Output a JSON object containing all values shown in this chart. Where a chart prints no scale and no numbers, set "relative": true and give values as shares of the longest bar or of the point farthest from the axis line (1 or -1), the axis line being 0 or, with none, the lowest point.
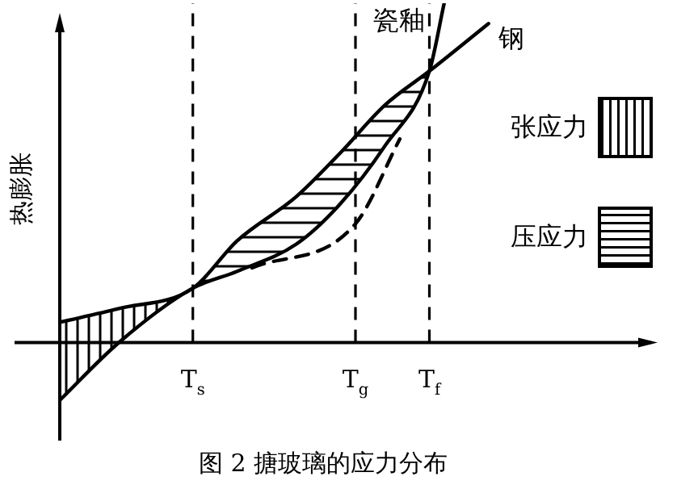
{
  "chart_data": {
    "type": "line",
    "relative": true,
    "title": "图 2 搪玻璃的应力分布",
    "ylabel": "热膨胀",
    "grid": "x",
    "marker": "none",
    "annotations": [
      "张应力",
      "压应力"
    ],
    "categories": [
      null,
      null,
      null,
      null,
      null,
      null,
      null,
      null,
      null,
      "T$_{s}$",
      null,
      null,
      null,
      null,
      null,
      null,
      null,
      null,
      null,
      null,
      "T$_{g}$",
      null,
      null,
      null,
      null,
      "T$_{f}$",
      null,
      null,
      null,
      null,
      null,
      null,
      null,
      null,
      null,
      null,
      null,
      null,
      null,
      null,
      null
    ],
    "series": [
      {
        "name": "瓷釉",
        "type": "line",
        "color": "#000000",
        "values": [
          -0.17,
          null,
          null,
          null,
          0,
          null,
          null,
          null,
          null,
          0.16,
          null,
          null,
          0.21,
          null,
          null,
          null,
          0.29,
          null,
          null,
          0.41,
          null,
          null,
          0.58,
          null,
          null,
          0.8,
          1.0,
          null,
          null,
          null,
          null,
          null,
          null,
          null,
          null,
          null,
          null,
          null,
          null,
          null,
          null
        ]
      },
      {
        "name": "钢",
        "type": "line",
        "color": "#000000",
        "values": [
          0.06,
          null,
          null,
          null,
          0.1,
          null,
          null,
          null,
          null,
          0.16,
          null,
          null,
          0.3,
          null,
          null,
          null,
          0.43,
          null,
          null,
          0.56,
          null,
          null,
          0.7,
          null,
          null,
          0.8,
          null,
          null,
          null,
          0.94,
          null,
          null,
          null,
          null,
          null,
          null,
          null,
          null,
          null,
          null,
          null
        ]
      },
      {
        "type": "line",
        "color": "#000000",
        "line_style": "dashed",
        "values": [
          null,
          null,
          null,
          null,
          null,
          null,
          null,
          null,
          null,
          null,
          null,
          null,
          null,
          0.22,
          null,
          null,
          null,
          null,
          null,
          null,
          0.35,
          null,
          null,
          0.6,
          null,
          null,
          null,
          null,
          null,
          null,
          null,
          null,
          null,
          null,
          null,
          null,
          null,
          null,
          null,
          null,
          null
        ]
      }
    ]
  }
}
